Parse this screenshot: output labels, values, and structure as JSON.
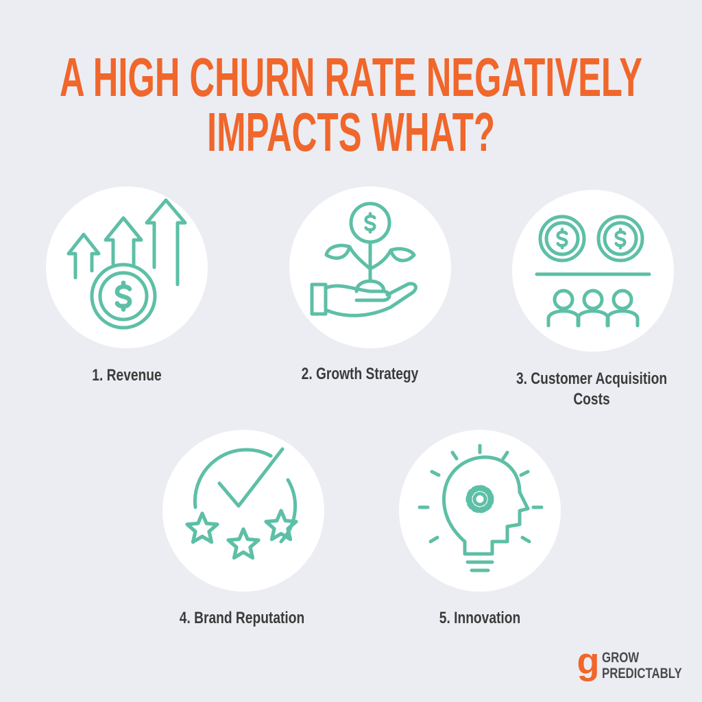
{
  "header": {
    "title_lines": [
      "A HIGH CHURN RATE NEGATIVELY",
      "IMPACTS WHAT?"
    ]
  },
  "items": [
    {
      "label": "1. Revenue"
    },
    {
      "label": "2. Growth Strategy"
    },
    {
      "label_lines": [
        "3. Customer Acquisition",
        "Costs"
      ]
    },
    {
      "label": "4. Brand Reputation"
    },
    {
      "label": "5. Innovation"
    }
  ],
  "logo": {
    "mark": "g",
    "line1": "GROW",
    "line2": "PREDICTABLY"
  }
}
